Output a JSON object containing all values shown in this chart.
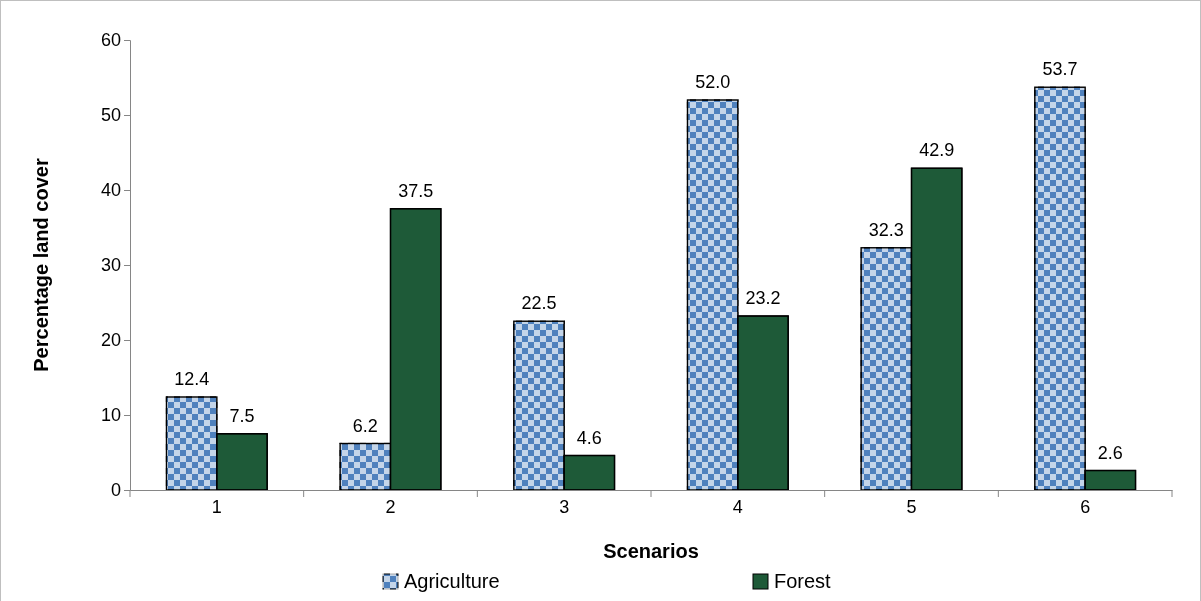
{
  "chart_data": {
    "type": "bar",
    "xlabel": "Scenarios",
    "ylabel": "Percentage land cover",
    "categories": [
      "1",
      "2",
      "3",
      "4",
      "5",
      "6"
    ],
    "series": [
      {
        "name": "Agriculture",
        "color": "#4f81bd",
        "values": [
          12.4,
          6.2,
          22.5,
          52.0,
          32.3,
          53.7
        ],
        "value_labels": [
          "12.4",
          "6.2",
          "22.5",
          "52.0",
          "32.3",
          "53.7"
        ]
      },
      {
        "name": "Forest",
        "color": "#1e5a38",
        "values": [
          7.5,
          37.5,
          4.6,
          23.2,
          42.9,
          2.6
        ],
        "value_labels": [
          "7.5",
          "37.5",
          "4.6",
          "23.2",
          "42.9",
          "2.6"
        ]
      }
    ],
    "ylim": [
      0,
      60
    ],
    "yticks": [
      0,
      10,
      20,
      30,
      40,
      50,
      60
    ],
    "grid": false,
    "legend": "bottom"
  }
}
